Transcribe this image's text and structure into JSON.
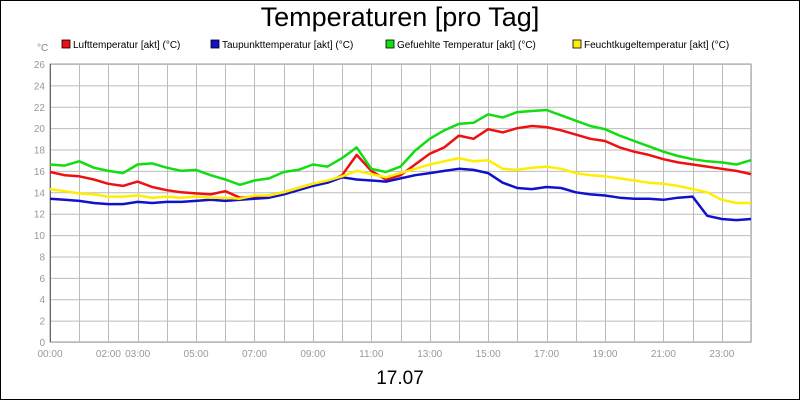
{
  "chart_data": {
    "type": "line",
    "title": "Temperaturen [pro Tag]",
    "xlabel": "17.07",
    "ylabel": "°C",
    "ylim": [
      0,
      26
    ],
    "yticks": [
      0,
      2,
      4,
      6,
      8,
      10,
      12,
      14,
      16,
      18,
      20,
      22,
      24,
      26
    ],
    "xlim": [
      0,
      24
    ],
    "xticks": [
      {
        "h": 0,
        "label": "00:00"
      },
      {
        "h": 2,
        "label": "02:00"
      },
      {
        "h": 3,
        "label": "03:00"
      },
      {
        "h": 5,
        "label": "05:00"
      },
      {
        "h": 7,
        "label": "07:00"
      },
      {
        "h": 9,
        "label": "09:00"
      },
      {
        "h": 11,
        "label": "11:00"
      },
      {
        "h": 13,
        "label": "13:00"
      },
      {
        "h": 15,
        "label": "15:00"
      },
      {
        "h": 17,
        "label": "17:00"
      },
      {
        "h": 19,
        "label": "19:00"
      },
      {
        "h": 21,
        "label": "21:00"
      },
      {
        "h": 23,
        "label": "23:00"
      }
    ],
    "grid": true,
    "legend_position": "top",
    "x_hours": [
      0,
      0.5,
      1,
      1.5,
      2,
      2.5,
      3,
      3.5,
      4,
      4.5,
      5,
      5.5,
      6,
      6.5,
      7,
      7.5,
      8,
      8.5,
      9,
      9.5,
      10,
      10.5,
      11,
      11.5,
      12,
      12.5,
      13,
      13.5,
      14,
      14.5,
      15,
      15.5,
      16,
      16.5,
      17,
      17.5,
      18,
      18.5,
      19,
      19.5,
      20,
      20.5,
      21,
      21.5,
      22,
      22.5,
      23,
      23.5,
      24
    ],
    "series": [
      {
        "name": "Lufttemperatur [akt] (°C)",
        "color": "#ee1111",
        "values": [
          15.9,
          15.6,
          15.5,
          15.2,
          14.8,
          14.6,
          15.0,
          14.5,
          14.2,
          14.0,
          13.9,
          13.8,
          14.1,
          13.5,
          13.6,
          13.7,
          14.0,
          14.4,
          14.8,
          14.9,
          15.6,
          17.5,
          16.0,
          15.2,
          15.6,
          16.6,
          17.6,
          18.2,
          19.3,
          19.0,
          19.9,
          19.6,
          20.0,
          20.2,
          20.1,
          19.8,
          19.4,
          19.0,
          18.8,
          18.2,
          17.8,
          17.5,
          17.1,
          16.8,
          16.6,
          16.4,
          16.2,
          16.0,
          15.7
        ]
      },
      {
        "name": "Taupunkttemperatur [akt] (°C)",
        "color": "#1111cc",
        "values": [
          13.4,
          13.3,
          13.2,
          13.0,
          12.9,
          12.9,
          13.1,
          13.0,
          13.1,
          13.1,
          13.2,
          13.3,
          13.2,
          13.3,
          13.4,
          13.5,
          13.8,
          14.2,
          14.6,
          14.9,
          15.4,
          15.2,
          15.1,
          15.0,
          15.3,
          15.6,
          15.8,
          16.0,
          16.2,
          16.1,
          15.8,
          14.9,
          14.4,
          14.3,
          14.5,
          14.4,
          14.0,
          13.8,
          13.7,
          13.5,
          13.4,
          13.4,
          13.3,
          13.5,
          13.6,
          11.8,
          11.5,
          11.4,
          11.5
        ]
      },
      {
        "name": "Gefuehlte Temperatur [akt] (°C)",
        "color": "#11dd11",
        "values": [
          16.6,
          16.5,
          16.9,
          16.3,
          16.0,
          15.8,
          16.6,
          16.7,
          16.3,
          16.0,
          16.1,
          15.6,
          15.2,
          14.7,
          15.1,
          15.3,
          15.9,
          16.1,
          16.6,
          16.4,
          17.2,
          18.2,
          16.2,
          15.9,
          16.4,
          17.9,
          19.0,
          19.8,
          20.4,
          20.5,
          21.3,
          21.0,
          21.5,
          21.6,
          21.7,
          21.2,
          20.7,
          20.2,
          19.9,
          19.3,
          18.8,
          18.3,
          17.8,
          17.4,
          17.1,
          16.9,
          16.8,
          16.6,
          17.0
        ]
      },
      {
        "name": "Feuchtkugeltemperatur [akt] (°C)",
        "color": "#ffee00",
        "values": [
          14.3,
          14.1,
          13.9,
          13.8,
          13.6,
          13.6,
          13.7,
          13.5,
          13.6,
          13.5,
          13.6,
          13.5,
          13.5,
          13.4,
          13.7,
          13.7,
          14.0,
          14.4,
          14.8,
          15.1,
          15.5,
          16.0,
          15.7,
          15.4,
          15.8,
          16.2,
          16.6,
          16.9,
          17.2,
          16.9,
          17.0,
          16.2,
          16.1,
          16.3,
          16.4,
          16.2,
          15.8,
          15.6,
          15.5,
          15.3,
          15.1,
          14.9,
          14.8,
          14.6,
          14.3,
          14.0,
          13.3,
          13.0,
          13.0
        ]
      }
    ]
  }
}
